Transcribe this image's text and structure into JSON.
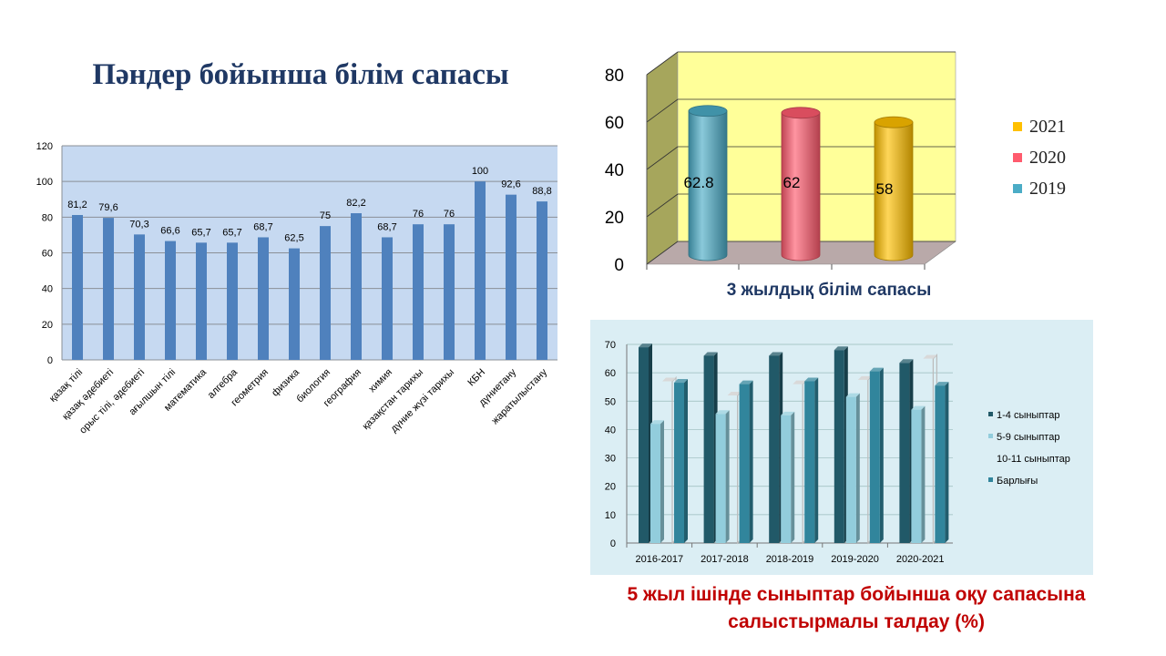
{
  "slide": {
    "main_title": "Пәндер бойынша білім сапасы",
    "chart3_caption": "3 жылдық білім сапасы",
    "chart5_caption": "5 жыл ішінде сыныптар  бойынша оқу сапасына салыстырмалы талдау (%)"
  },
  "colors": {
    "bars1": "#4f81bd",
    "plot1_bg": "#c6d9f1",
    "plot2_wall": "#ffff99",
    "plot3_bg": "#dbeef4"
  },
  "chart_data": [
    {
      "id": "subjects",
      "type": "bar",
      "categories": [
        "қазақ тілі",
        "қазақ әдебиеті",
        "орыс тілі, әдебиеті",
        "ағылшын тілі",
        "математика",
        "алгебра",
        "геометрия",
        "физика",
        "биология",
        "география",
        "химия",
        "қазақстан тарихы",
        "дүние жүзі тарихы",
        "КБН",
        "дүниетану",
        "жаратылыстану"
      ],
      "values": [
        81.2,
        79.6,
        70.3,
        66.6,
        65.7,
        65.7,
        68.7,
        62.5,
        75,
        82.2,
        68.7,
        76,
        76,
        100,
        92.6,
        88.8
      ],
      "value_labels": [
        "81,2",
        "79,6",
        "70,3",
        "66,6",
        "65,7",
        "65,7",
        "68,7",
        "62,5",
        "75",
        "82,2",
        "68,7",
        "76",
        "76",
        "100",
        "92,6",
        "88,8"
      ],
      "yticks": [
        "0",
        "20",
        "40",
        "60",
        "80",
        "100",
        "120"
      ],
      "ylim": [
        0,
        120
      ],
      "grid": true
    },
    {
      "id": "three-year",
      "type": "bar",
      "style": "3d-cylinder",
      "series": [
        {
          "name": "2019",
          "value": 62.8,
          "label": "62.8",
          "color": "#4bacc6"
        },
        {
          "name": "2020",
          "value": 62,
          "label": "62",
          "color": "#ff5b6e"
        },
        {
          "name": "2021",
          "value": 58,
          "label": "58",
          "color": "#ffc000"
        }
      ],
      "legend_order": [
        "2021",
        "2020",
        "2019"
      ],
      "yticks": [
        "0",
        "20",
        "40",
        "60",
        "80"
      ],
      "ylim": [
        0,
        80
      ],
      "grid": true,
      "legend": "right"
    },
    {
      "id": "five-year",
      "type": "bar",
      "style": "3d",
      "categories": [
        "2016-2017",
        "2017-2018",
        "2018-2019",
        "2019-2020",
        "2020-2021"
      ],
      "series": [
        {
          "name": "1-4 сыныптар",
          "values": [
            69,
            66,
            66,
            68,
            63.5
          ],
          "color": "#215968"
        },
        {
          "name": "5-9 сыныптар",
          "values": [
            42,
            45.5,
            45,
            51.5,
            47
          ],
          "color": "#92cddc"
        },
        {
          "name": "10-11 сыныптар",
          "values": [
            57,
            52,
            56,
            57.5,
            65
          ],
          "color": "#ffffff"
        },
        {
          "name": "Барлығы",
          "values": [
            56.5,
            56,
            57,
            60.5,
            55.5
          ],
          "color": "#31859c"
        }
      ],
      "yticks": [
        "0",
        "10",
        "20",
        "30",
        "40",
        "50",
        "60",
        "70"
      ],
      "ylim": [
        0,
        70
      ],
      "grid": true,
      "legend": "right"
    }
  ]
}
